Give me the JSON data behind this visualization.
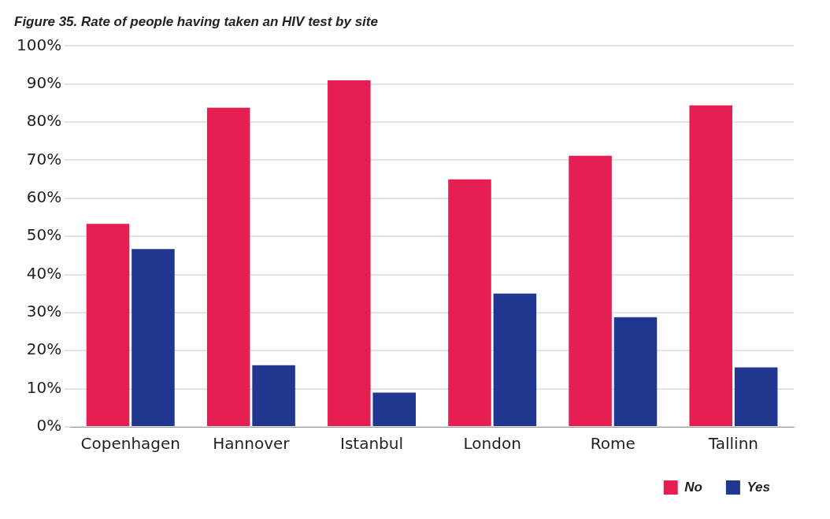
{
  "chart_data": {
    "type": "bar",
    "title": "Figure 35. Rate of people having taken an HIV test by site",
    "categories": [
      "Copenhagen",
      "Hannover",
      "Istanbul",
      "London",
      "Rome",
      "Tallinn"
    ],
    "series": [
      {
        "name": "No",
        "color": "#e61f53",
        "values": [
          53.3,
          83.8,
          91.0,
          65.0,
          71.2,
          84.4
        ]
      },
      {
        "name": "Yes",
        "color": "#21368f",
        "values": [
          46.7,
          16.2,
          9.0,
          35.0,
          28.8,
          15.6
        ]
      }
    ],
    "ylim": [
      0,
      100
    ],
    "yticks": [
      {
        "value": 0,
        "label": "0%"
      },
      {
        "value": 10,
        "label": "10%"
      },
      {
        "value": 20,
        "label": "20%"
      },
      {
        "value": 30,
        "label": "30%"
      },
      {
        "value": 40,
        "label": "40%"
      },
      {
        "value": 50,
        "label": "50%"
      },
      {
        "value": 60,
        "label": "60%"
      },
      {
        "value": 70,
        "label": "70%"
      },
      {
        "value": 80,
        "label": "80%"
      },
      {
        "value": 90,
        "label": "90%"
      },
      {
        "value": 100,
        "label": "100%"
      }
    ],
    "grid": "y",
    "legend": "bottom right"
  }
}
